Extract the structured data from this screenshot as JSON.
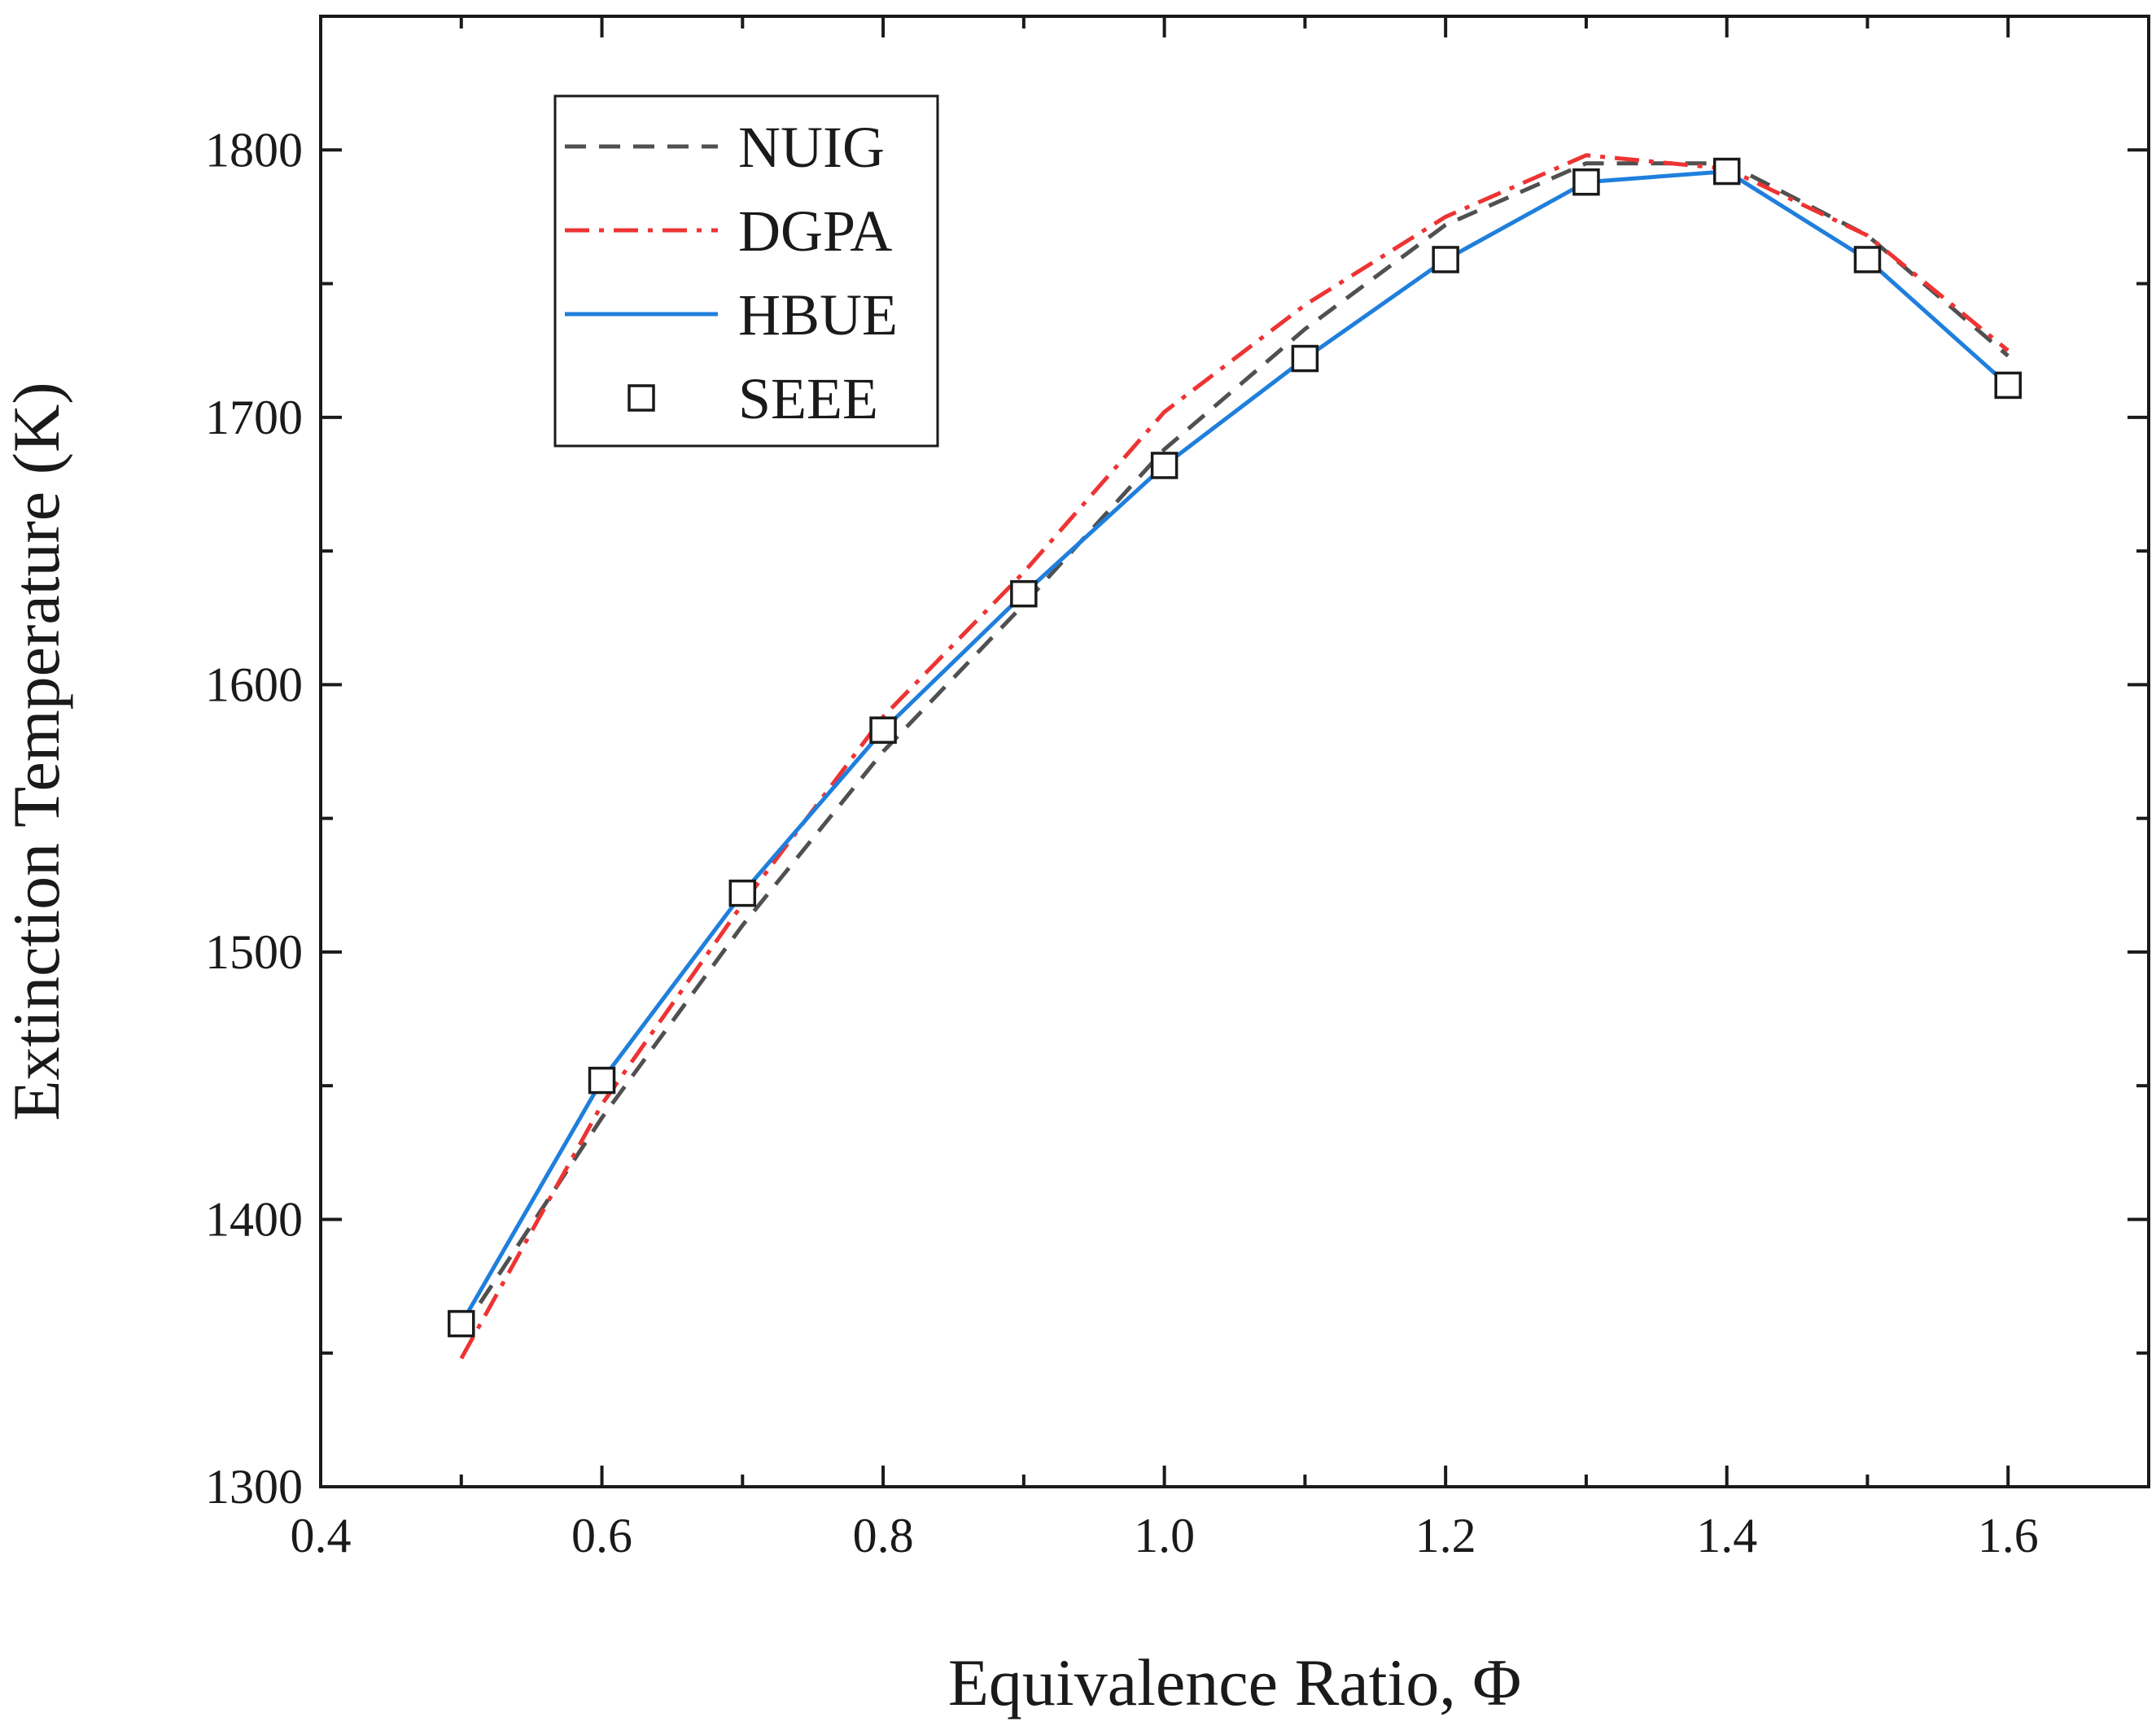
{
  "chart_data": {
    "type": "line",
    "title": "",
    "xlabel": "Equivalence Ratio, Φ",
    "ylabel": "Extinction Temperature (K)",
    "xlim": [
      0.4,
      1.7
    ],
    "ylim": [
      1300,
      1850
    ],
    "xticks": [
      0.4,
      0.6,
      0.8,
      1.0,
      1.2,
      1.4,
      1.6
    ],
    "xtick_labels": [
      "0.4",
      "0.6",
      "0.8",
      "1.0",
      "1.2",
      "1.4",
      "1.6"
    ],
    "yticks": [
      1300,
      1400,
      1500,
      1600,
      1700,
      1800
    ],
    "ytick_labels": [
      "1300",
      "1400",
      "1500",
      "1600",
      "1700",
      "1800"
    ],
    "legend_position": "top-left",
    "series": [
      {
        "name": "NUIG",
        "style": "dashed",
        "color": "#505050",
        "x": [
          0.5,
          0.6,
          0.7,
          0.8,
          0.9,
          1.0,
          1.1,
          1.2,
          1.3,
          1.4,
          1.5,
          1.6
        ],
        "y": [
          1358,
          1438,
          1510,
          1575,
          1630,
          1688,
          1733,
          1772,
          1795,
          1795,
          1768,
          1723
        ]
      },
      {
        "name": "DGPA",
        "style": "dash-dot",
        "color": "#ee3333",
        "x": [
          0.5,
          0.6,
          0.7,
          0.8,
          0.9,
          1.0,
          1.1,
          1.2,
          1.3,
          1.4,
          1.5,
          1.6
        ],
        "y": [
          1348,
          1443,
          1518,
          1588,
          1642,
          1702,
          1742,
          1775,
          1798,
          1793,
          1768,
          1725
        ]
      },
      {
        "name": "HBUE",
        "style": "solid",
        "color": "#1f7fdc",
        "x": [
          0.5,
          0.6,
          0.7,
          0.8,
          0.9,
          1.0,
          1.1,
          1.2,
          1.3,
          1.4,
          1.5,
          1.6
        ],
        "y": [
          1361,
          1452,
          1522,
          1583,
          1634,
          1682,
          1722,
          1759,
          1788,
          1792,
          1759,
          1712
        ]
      },
      {
        "name": "SEEE",
        "style": "markers",
        "marker": "square",
        "color": "#1a1a1a",
        "x": [
          0.5,
          0.6,
          0.7,
          0.8,
          0.9,
          1.0,
          1.1,
          1.2,
          1.3,
          1.4,
          1.5,
          1.6
        ],
        "y": [
          1361,
          1452,
          1522,
          1583,
          1634,
          1682,
          1722,
          1759,
          1788,
          1792,
          1759,
          1712
        ]
      }
    ]
  }
}
